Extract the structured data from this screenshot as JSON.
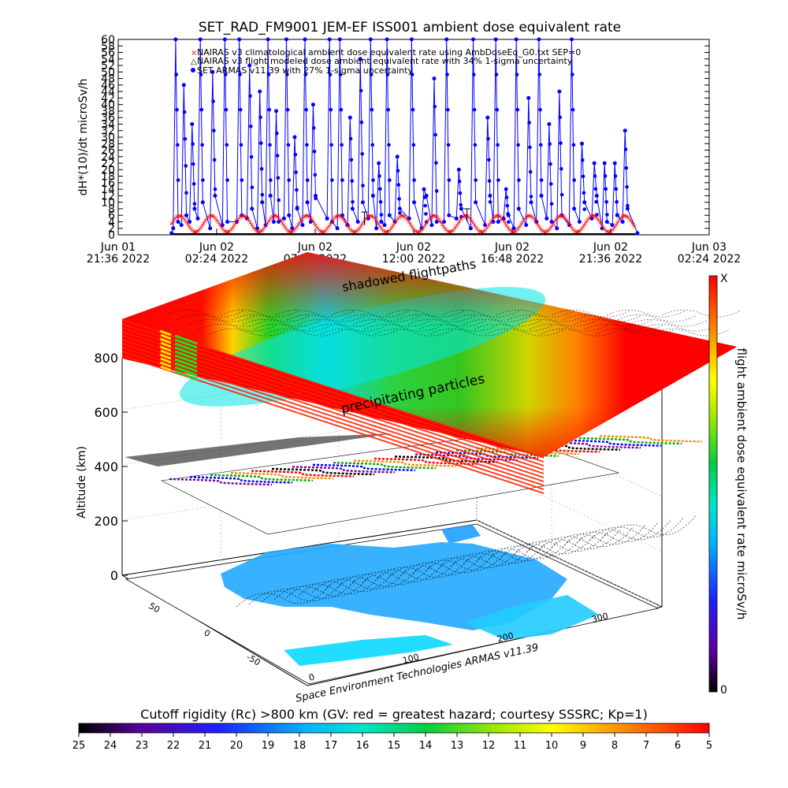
{
  "timeseries": {
    "title": "SET_RAD_FM9001  JEM-EF ISS001 ambient dose equivalent rate",
    "ylabel": "dH*(10)/dt microSv/h",
    "legend": [
      "NAIRAS v3 climatological ambient dose equivalent rate using AmbDoseEq_G0.txt SEP=0",
      "NAIRAS v3 flight modeled dose ambient equivalent rate with 34% 1-sigma uncertainty",
      "SET ARMAS v11.39 with 27% 1-sigma uncertainty"
    ],
    "xticks_line1": [
      "Jun 01",
      "Jun 02",
      "Jun 02",
      "Jun 02",
      "Jun 02",
      "Jun 02",
      "Jun 03"
    ],
    "xticks_line2": [
      "21:36 2022",
      "02:24 2022",
      "07:12 2022",
      "12:00 2022",
      "16:48 2022",
      "21:36 2022",
      "02:24 2022"
    ],
    "yticks": [
      "0",
      "2",
      "4",
      "6",
      "8",
      "10",
      "12",
      "14",
      "16",
      "18",
      "20",
      "22",
      "24",
      "26",
      "28",
      "30",
      "32",
      "34",
      "36",
      "38",
      "40",
      "42",
      "44",
      "46",
      "48",
      "50",
      "52",
      "54",
      "56",
      "58",
      "60"
    ]
  },
  "globe": {
    "zlabel": "Altitude (km)",
    "zticks": [
      "0",
      "200",
      "400",
      "600",
      "800"
    ],
    "lat_ticks": [
      "50",
      "0",
      "-50"
    ],
    "lon_ticks": [
      "100",
      "200",
      "300"
    ],
    "top_label": "shadowed flightpaths",
    "mid_label": "precipitating particles",
    "credit": "Space Environment Technologies ARMAS v11.39"
  },
  "colorbar_right": {
    "label": "flight ambient dose equivalent rate microSv/h",
    "top": "X",
    "bottom": "0"
  },
  "colorbar_bottom": {
    "title": "Cutoff rigidity (Rc) >800 km (GV: red = greatest hazard; courtesy SSSRC; Kp=1)",
    "ticks": [
      "25",
      "24",
      "23",
      "22",
      "21",
      "20",
      "19",
      "18",
      "17",
      "16",
      "15",
      "14",
      "13",
      "12",
      "11",
      "10",
      "9",
      "8",
      "7",
      "6",
      "5"
    ]
  },
  "colors": {
    "armas": "#0000ff",
    "nairas": "#ff0000",
    "ocean": "#22aaff",
    "axes": "#000000"
  },
  "chart_data": [
    {
      "type": "line",
      "title": "SET_RAD_FM9001  JEM-EF ISS001 ambient dose equivalent rate",
      "xlabel": "",
      "ylabel": "dH*(10)/dt microSv/h",
      "x_unit": "hours after Jun 01 21:36 2022",
      "xlim": [
        0,
        28.8
      ],
      "ylim": [
        0,
        60
      ],
      "grid": false,
      "legend_position": "top-left",
      "series": [
        {
          "name": "NAIRAS v3 climatological ambient dose equivalent rate using AmbDoseEq_G0.txt SEP=0",
          "pattern": "periodic",
          "period_h": 1.55,
          "min": 1,
          "max": 6,
          "x_range": [
            2.6,
            25.2
          ]
        },
        {
          "name": "SET ARMAS v11.39 with 27% 1-sigma uncertainty",
          "pattern": "spiky",
          "x_range": [
            2.6,
            25.3
          ],
          "spikes": [
            {
              "x": 2.8,
              "y": 60
            },
            {
              "x": 3.2,
              "y": 46
            },
            {
              "x": 3.6,
              "y": 34
            },
            {
              "x": 4.0,
              "y": 60
            },
            {
              "x": 4.6,
              "y": 50
            },
            {
              "x": 5.2,
              "y": 60
            },
            {
              "x": 5.9,
              "y": 60
            },
            {
              "x": 6.4,
              "y": 52
            },
            {
              "x": 6.9,
              "y": 44
            },
            {
              "x": 7.3,
              "y": 60
            },
            {
              "x": 7.7,
              "y": 38
            },
            {
              "x": 8.2,
              "y": 60
            },
            {
              "x": 8.6,
              "y": 30
            },
            {
              "x": 9.1,
              "y": 60
            },
            {
              "x": 9.5,
              "y": 40
            },
            {
              "x": 10.3,
              "y": 60
            },
            {
              "x": 10.8,
              "y": 60
            },
            {
              "x": 11.3,
              "y": 36
            },
            {
              "x": 11.8,
              "y": 54
            },
            {
              "x": 12.3,
              "y": 60
            },
            {
              "x": 12.7,
              "y": 22
            },
            {
              "x": 13.1,
              "y": 60
            },
            {
              "x": 13.6,
              "y": 24
            },
            {
              "x": 14.3,
              "y": 60
            },
            {
              "x": 14.9,
              "y": 14
            },
            {
              "x": 15.4,
              "y": 48
            },
            {
              "x": 16.0,
              "y": 60
            },
            {
              "x": 16.6,
              "y": 20
            },
            {
              "x": 17.3,
              "y": 60
            },
            {
              "x": 18.0,
              "y": 36
            },
            {
              "x": 18.4,
              "y": 60
            },
            {
              "x": 18.9,
              "y": 14
            },
            {
              "x": 19.4,
              "y": 60
            },
            {
              "x": 20.0,
              "y": 42
            },
            {
              "x": 20.5,
              "y": 60
            },
            {
              "x": 21.0,
              "y": 34
            },
            {
              "x": 21.5,
              "y": 44
            },
            {
              "x": 22.1,
              "y": 60
            },
            {
              "x": 22.6,
              "y": 28
            },
            {
              "x": 23.2,
              "y": 22
            },
            {
              "x": 23.7,
              "y": 22
            },
            {
              "x": 24.2,
              "y": 22
            },
            {
              "x": 24.7,
              "y": 32
            }
          ]
        }
      ]
    },
    {
      "type": "heatmap",
      "title": "Cutoff rigidity (Rc) >800 km (GV: red = greatest hazard; courtesy SSSRC; Kp=1)",
      "xlabel": "",
      "ylabel": "Altitude (km)",
      "zlim": [
        0,
        800
      ],
      "colorbar_range": [
        25,
        5
      ],
      "grid": true
    }
  ]
}
